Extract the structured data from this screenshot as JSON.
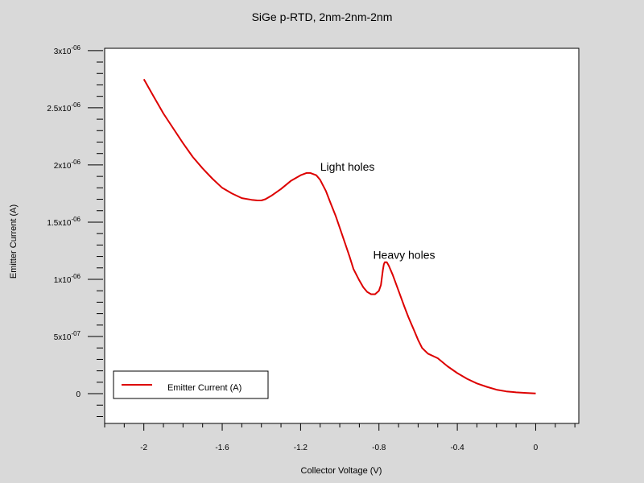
{
  "chart_data": {
    "type": "line",
    "title": "SiGe p-RTD, 2nm-2nm-2nm",
    "xlabel": "Collector Voltage (V)",
    "ylabel": "Emitter Current (A)",
    "xlim": [
      -2.2,
      0.22
    ],
    "ylim": [
      -2.6e-07,
      3.02e-06
    ],
    "x_ticks": [
      {
        "value": -2.0,
        "label": "-2"
      },
      {
        "value": -1.6,
        "label": "-1.6"
      },
      {
        "value": -1.2,
        "label": "-1.2"
      },
      {
        "value": -0.8,
        "label": "-0.8"
      },
      {
        "value": -0.4,
        "label": "-0.4"
      },
      {
        "value": 0.0,
        "label": "0"
      }
    ],
    "y_ticks": [
      {
        "value": 0,
        "mant": "0",
        "exp": ""
      },
      {
        "value": 5e-07,
        "mant": "5x10",
        "exp": "-07"
      },
      {
        "value": 1e-06,
        "mant": "1x10",
        "exp": "-06"
      },
      {
        "value": 1.5e-06,
        "mant": "1.5x10",
        "exp": "-06"
      },
      {
        "value": 2e-06,
        "mant": "2x10",
        "exp": "-06"
      },
      {
        "value": 2.5e-06,
        "mant": "2.5x10",
        "exp": "-06"
      },
      {
        "value": 3e-06,
        "mant": "3x10",
        "exp": "-06"
      }
    ],
    "grid": false,
    "legend_position": "bottom-left",
    "series": [
      {
        "name": "Emitter Current (A)",
        "color": "#dd0000",
        "x": [
          -2.0,
          -1.95,
          -1.9,
          -1.85,
          -1.8,
          -1.75,
          -1.7,
          -1.65,
          -1.6,
          -1.55,
          -1.5,
          -1.45,
          -1.42,
          -1.4,
          -1.38,
          -1.35,
          -1.3,
          -1.25,
          -1.2,
          -1.17,
          -1.15,
          -1.12,
          -1.1,
          -1.07,
          -1.05,
          -1.02,
          -1.0,
          -0.97,
          -0.95,
          -0.93,
          -0.9,
          -0.88,
          -0.86,
          -0.84,
          -0.82,
          -0.8,
          -0.79,
          -0.78,
          -0.775,
          -0.77,
          -0.76,
          -0.75,
          -0.73,
          -0.7,
          -0.67,
          -0.65,
          -0.62,
          -0.6,
          -0.58,
          -0.55,
          -0.5,
          -0.45,
          -0.4,
          -0.35,
          -0.3,
          -0.25,
          -0.2,
          -0.15,
          -0.1,
          -0.05,
          0.0
        ],
        "y": [
          2.75e-06,
          2.6e-06,
          2.45e-06,
          2.32e-06,
          2.19e-06,
          2.07e-06,
          1.97e-06,
          1.88e-06,
          1.8e-06,
          1.75e-06,
          1.71e-06,
          1.695e-06,
          1.69e-06,
          1.69e-06,
          1.7e-06,
          1.73e-06,
          1.79e-06,
          1.86e-06,
          1.91e-06,
          1.93e-06,
          1.93e-06,
          1.91e-06,
          1.87e-06,
          1.77e-06,
          1.68e-06,
          1.55e-06,
          1.45e-06,
          1.3e-06,
          1.2e-06,
          1.09e-06,
          9.9e-07,
          9.3e-07,
          8.9e-07,
          8.7e-07,
          8.7e-07,
          9e-07,
          9.5e-07,
          1.08e-06,
          1.13e-06,
          1.15e-06,
          1.15e-06,
          1.12e-06,
          1.04e-06,
          9e-07,
          7.6e-07,
          6.7e-07,
          5.5e-07,
          4.7e-07,
          4e-07,
          3.5e-07,
          3.1e-07,
          2.4e-07,
          1.8e-07,
          1.3e-07,
          9e-08,
          6e-08,
          3.5e-08,
          2e-08,
          1.2e-08,
          7e-09,
          2e-09
        ]
      }
    ],
    "annotations": [
      {
        "text": "Light holes",
        "x": -1.1,
        "y": 1.95e-06
      },
      {
        "text": "Heavy holes",
        "x": -0.83,
        "y": 1.18e-06
      }
    ]
  }
}
